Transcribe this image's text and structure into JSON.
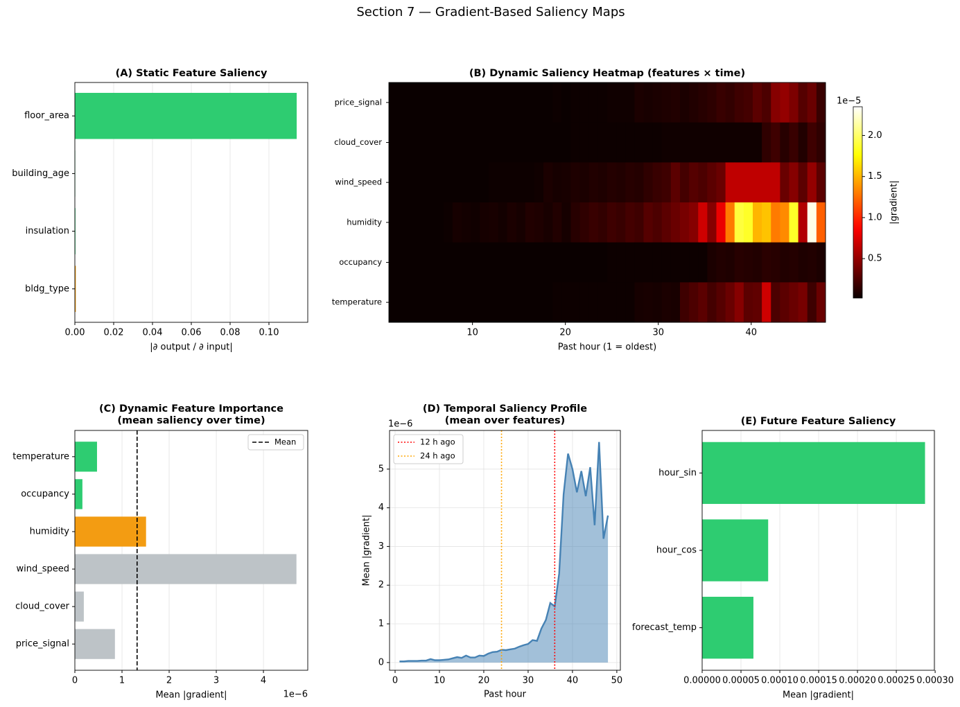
{
  "title": "Section 7 — Gradient-Based Saliency Maps",
  "chart_data": [
    {
      "type": "barh",
      "title": "(A) Static Feature Saliency",
      "categories": [
        "floor_area",
        "building_age",
        "insulation",
        "bldg_type"
      ],
      "values": [
        0.1143,
        0.0002,
        0.0003,
        0.0005
      ],
      "colors": [
        "#2ecc71",
        "#2ecc71",
        "#2ecc71",
        "#f39c12"
      ],
      "xlim": [
        0,
        0.12
      ],
      "xticks": [
        {
          "value": 0,
          "label": "0.00"
        },
        {
          "value": 0.02,
          "label": "0.02"
        },
        {
          "value": 0.04,
          "label": "0.04"
        },
        {
          "value": 0.06,
          "label": "0.06"
        },
        {
          "value": 0.08,
          "label": "0.08"
        },
        {
          "value": 0.1,
          "label": "0.10"
        }
      ],
      "xlabel": "|∂ output / ∂ input|",
      "grid": true
    },
    {
      "type": "heatmap",
      "title": "(B) Dynamic Saliency Heatmap  (features × time)",
      "rows": [
        "price_signal",
        "cloud_cover",
        "wind_speed",
        "humidity",
        "occupancy",
        "temperature"
      ],
      "values": [
        [
          0.01,
          0.01,
          0.01,
          0.01,
          0.01,
          0.01,
          0.01,
          0.01,
          0.01,
          0.01,
          0.02,
          0.01,
          0.02,
          0.02,
          0.02,
          0.02,
          0.02,
          0.02,
          0.03,
          0.02,
          0.03,
          0.03,
          0.03,
          0.03,
          0.04,
          0.04,
          0.04,
          0.08,
          0.07,
          0.08,
          0.09,
          0.1,
          0.08,
          0.1,
          0.12,
          0.14,
          0.18,
          0.16,
          0.2,
          0.22,
          0.3,
          0.25,
          0.45,
          0.5,
          0.42,
          0.28,
          0.35,
          0.18
        ],
        [
          0.01,
          0.01,
          0.01,
          0.01,
          0.01,
          0.01,
          0.01,
          0.01,
          0.01,
          0.01,
          0.02,
          0.02,
          0.02,
          0.02,
          0.02,
          0.02,
          0.02,
          0.02,
          0.02,
          0.02,
          0.03,
          0.03,
          0.03,
          0.03,
          0.03,
          0.03,
          0.03,
          0.03,
          0.03,
          0.03,
          0.04,
          0.04,
          0.04,
          0.04,
          0.04,
          0.04,
          0.04,
          0.04,
          0.04,
          0.04,
          0.04,
          0.15,
          0.2,
          0.12,
          0.18,
          0.1,
          0.2,
          0.15
        ],
        [
          0.01,
          0.01,
          0.01,
          0.01,
          0.01,
          0.02,
          0.02,
          0.02,
          0.02,
          0.02,
          0.02,
          0.03,
          0.03,
          0.03,
          0.03,
          0.03,
          0.04,
          0.08,
          0.06,
          0.07,
          0.09,
          0.08,
          0.1,
          0.09,
          0.11,
          0.1,
          0.12,
          0.11,
          0.15,
          0.18,
          0.2,
          0.3,
          0.22,
          0.28,
          0.25,
          0.3,
          0.35,
          0.65,
          0.65,
          0.65,
          0.65,
          0.65,
          0.65,
          0.35,
          0.45,
          0.3,
          0.5,
          0.3
        ],
        [
          0.01,
          0.01,
          0.01,
          0.01,
          0.01,
          0.01,
          0.03,
          0.06,
          0.05,
          0.04,
          0.06,
          0.07,
          0.05,
          0.08,
          0.06,
          0.1,
          0.09,
          0.07,
          0.1,
          0.06,
          0.12,
          0.15,
          0.18,
          0.16,
          0.2,
          0.18,
          0.22,
          0.2,
          0.28,
          0.25,
          0.3,
          0.35,
          0.4,
          0.45,
          0.7,
          0.45,
          0.8,
          1.3,
          1.9,
          1.85,
          1.5,
          1.55,
          1.3,
          1.35,
          1.85,
          0.6,
          2.3,
          1.2
        ],
        [
          0.01,
          0.01,
          0.01,
          0.01,
          0.01,
          0.01,
          0.01,
          0.01,
          0.01,
          0.01,
          0.01,
          0.01,
          0.02,
          0.02,
          0.02,
          0.02,
          0.02,
          0.02,
          0.02,
          0.02,
          0.02,
          0.02,
          0.02,
          0.02,
          0.03,
          0.03,
          0.03,
          0.03,
          0.03,
          0.03,
          0.03,
          0.03,
          0.03,
          0.03,
          0.03,
          0.08,
          0.1,
          0.09,
          0.12,
          0.11,
          0.1,
          0.13,
          0.12,
          0.1,
          0.11,
          0.09,
          0.1,
          0.08
        ],
        [
          0.01,
          0.01,
          0.01,
          0.01,
          0.01,
          0.01,
          0.01,
          0.01,
          0.01,
          0.02,
          0.02,
          0.02,
          0.02,
          0.02,
          0.02,
          0.02,
          0.02,
          0.02,
          0.03,
          0.03,
          0.03,
          0.03,
          0.03,
          0.03,
          0.03,
          0.03,
          0.03,
          0.06,
          0.07,
          0.06,
          0.08,
          0.07,
          0.2,
          0.25,
          0.3,
          0.22,
          0.28,
          0.35,
          0.45,
          0.3,
          0.32,
          0.7,
          0.25,
          0.3,
          0.35,
          0.4,
          0.2,
          0.35
        ]
      ],
      "xlim": [
        1,
        48
      ],
      "xticks": [
        10,
        20,
        30,
        40
      ],
      "xlabel": "Past hour (1 = oldest)",
      "colormap": "hot",
      "clim": [
        0.02,
        2.35
      ],
      "colorbar_ticks": [
        0.5,
        {
          "value": 1,
          "label": "1.0"
        },
        1.5,
        {
          "value": 2,
          "label": "2.0"
        }
      ],
      "colorbar_label": "|gradient|",
      "offset_text": "1e−5"
    },
    {
      "type": "barh",
      "title": [
        "(C) Dynamic Feature Importance",
        "(mean saliency over time)"
      ],
      "categories": [
        "temperature",
        "occupancy",
        "humidity",
        "wind_speed",
        "cloud_cover",
        "price_signal"
      ],
      "values": [
        0.47,
        0.16,
        1.51,
        4.7,
        0.19,
        0.85
      ],
      "colors": [
        "#2ecc71",
        "#2ecc71",
        "#f39c12",
        "#bdc3c7",
        "#bdc3c7",
        "#bdc3c7"
      ],
      "xlim": [
        0,
        4.94
      ],
      "xticks": [
        0,
        1,
        2,
        3,
        4
      ],
      "xlabel": "Mean |gradient|",
      "offset_text": "1e−6",
      "grid": true,
      "mean_line": {
        "value": 1.32,
        "label": "Mean"
      },
      "legend": "upper right"
    },
    {
      "type": "area_line",
      "title": [
        "(D) Temporal Saliency Profile",
        "(mean over features)"
      ],
      "x": [
        1,
        2,
        3,
        4,
        5,
        6,
        7,
        8,
        9,
        10,
        11,
        12,
        13,
        14,
        15,
        16,
        17,
        18,
        19,
        20,
        21,
        22,
        23,
        24,
        25,
        26,
        27,
        28,
        29,
        30,
        31,
        32,
        33,
        34,
        35,
        36,
        37,
        38,
        39,
        40,
        41,
        42,
        43,
        44,
        45,
        46,
        47,
        48
      ],
      "values": [
        0.03,
        0.03,
        0.04,
        0.04,
        0.04,
        0.05,
        0.05,
        0.09,
        0.06,
        0.06,
        0.07,
        0.08,
        0.11,
        0.14,
        0.12,
        0.18,
        0.13,
        0.13,
        0.18,
        0.17,
        0.23,
        0.27,
        0.28,
        0.33,
        0.32,
        0.34,
        0.36,
        0.41,
        0.45,
        0.48,
        0.58,
        0.56,
        0.88,
        1.1,
        1.54,
        1.45,
        2.3,
        4.35,
        5.4,
        5.0,
        4.4,
        4.95,
        4.3,
        5.05,
        3.55,
        5.7,
        3.2,
        3.8
      ],
      "color": "#4682b4",
      "xlim": [
        -1.25,
        50.8
      ],
      "ylim": [
        -0.2,
        6.0
      ],
      "xticks": [
        0,
        10,
        20,
        30,
        40,
        50
      ],
      "yticks": [
        0,
        1,
        2,
        3,
        4,
        5
      ],
      "xlabel": "Past hour",
      "ylabel": "Mean |gradient|",
      "offset_text": "1e−6",
      "grid": true,
      "vlines": [
        {
          "x": 36,
          "label": "12 h ago",
          "color": "#ff0000"
        },
        {
          "x": 24,
          "label": "24 h ago",
          "color": "#ffa500"
        }
      ],
      "legend": "upper left"
    },
    {
      "type": "barh",
      "title": "(E) Future Feature Saliency",
      "categories": [
        "hour_sin",
        "hour_cos",
        "forecast_temp"
      ],
      "values": [
        0.000287,
        8.5e-05,
        6.6e-05
      ],
      "colors": [
        "#2ecc71",
        "#2ecc71",
        "#2ecc71"
      ],
      "xlim": [
        0,
        0.000299
      ],
      "xticks": [
        {
          "value": 0,
          "label": "0.00000"
        },
        {
          "value": 5e-05,
          "label": "0.00005"
        },
        {
          "value": 0.0001,
          "label": "0.00010"
        },
        {
          "value": 0.00015,
          "label": "0.00015"
        },
        {
          "value": 0.0002,
          "label": "0.00020"
        },
        {
          "value": 0.00025,
          "label": "0.00025"
        },
        {
          "value": 0.0003,
          "label": "0.00030"
        }
      ],
      "xlabel": "Mean |gradient|",
      "grid": true
    }
  ]
}
